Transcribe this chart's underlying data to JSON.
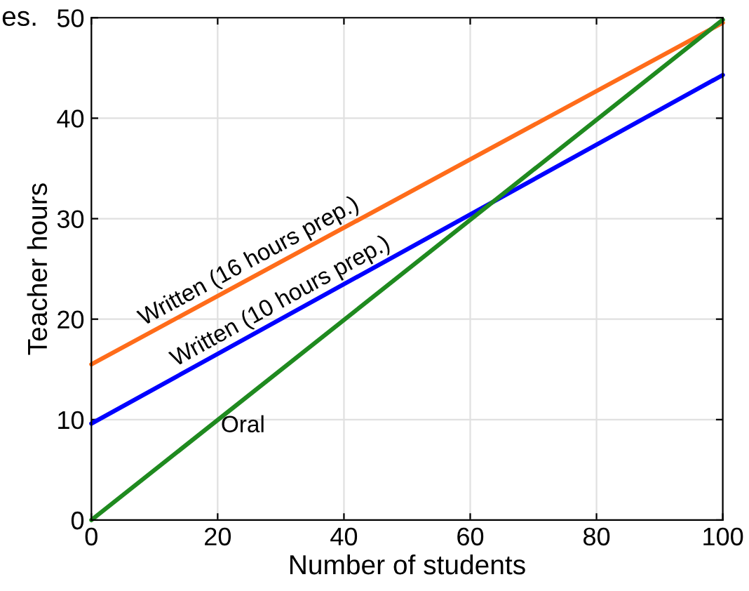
{
  "chart_data": {
    "type": "line",
    "xlabel": "Number of students",
    "ylabel": "Teacher hours",
    "x": [
      0,
      100
    ],
    "series": [
      {
        "name": "Written (16 hours prep.)",
        "color": "#ff6c1a",
        "values": [
          15.5,
          49.5
        ]
      },
      {
        "name": "Written (10 hours prep.)",
        "color": "#0000ff",
        "values": [
          9.6,
          44.3
        ]
      },
      {
        "name": "Oral",
        "color": "#1f8a1f",
        "values": [
          0,
          49.8
        ]
      }
    ],
    "xlim": [
      0,
      100
    ],
    "ylim": [
      0,
      50
    ],
    "xticks": [
      0,
      20,
      40,
      60,
      80,
      100
    ],
    "yticks": [
      0,
      10,
      20,
      30,
      40,
      50
    ],
    "grid": true,
    "annotations": [
      "es."
    ]
  }
}
